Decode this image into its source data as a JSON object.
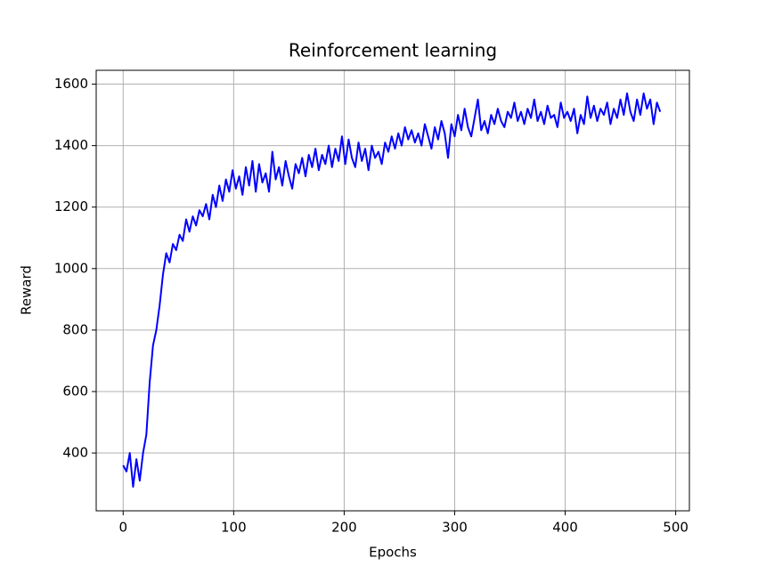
{
  "chart_data": {
    "type": "line",
    "title": "Reinforcement learning",
    "x_label": "Epochs",
    "y_label": "Reward",
    "x": [
      0,
      3,
      6,
      9,
      12,
      15,
      18,
      21,
      24,
      27,
      30,
      33,
      36,
      39,
      42,
      45,
      48,
      51,
      54,
      57,
      60,
      63,
      66,
      69,
      72,
      75,
      78,
      81,
      84,
      87,
      90,
      93,
      96,
      99,
      102,
      105,
      108,
      111,
      114,
      117,
      120,
      123,
      126,
      129,
      132,
      135,
      138,
      141,
      144,
      147,
      150,
      153,
      156,
      159,
      162,
      165,
      168,
      171,
      174,
      177,
      180,
      183,
      186,
      189,
      192,
      195,
      198,
      201,
      204,
      207,
      210,
      213,
      216,
      219,
      222,
      225,
      228,
      231,
      234,
      237,
      240,
      243,
      246,
      249,
      252,
      255,
      258,
      261,
      264,
      267,
      270,
      273,
      276,
      279,
      282,
      285,
      288,
      291,
      294,
      297,
      300,
      303,
      306,
      309,
      312,
      315,
      318,
      321,
      324,
      327,
      330,
      333,
      336,
      339,
      342,
      345,
      348,
      351,
      354,
      357,
      360,
      363,
      366,
      369,
      372,
      375,
      378,
      381,
      384,
      387,
      390,
      393,
      396,
      399,
      402,
      405,
      408,
      411,
      414,
      417,
      420,
      423,
      426,
      429,
      432,
      435,
      438,
      441,
      444,
      447,
      450,
      453,
      456,
      459,
      462,
      465,
      468,
      471,
      474,
      477,
      480,
      483,
      486
    ],
    "series": [
      {
        "name": "Reward",
        "color": "#0000ff",
        "values": [
          360,
          340,
          400,
          290,
          380,
          310,
          400,
          460,
          630,
          750,
          800,
          880,
          980,
          1050,
          1020,
          1080,
          1060,
          1110,
          1090,
          1160,
          1120,
          1170,
          1140,
          1190,
          1170,
          1210,
          1160,
          1240,
          1200,
          1270,
          1220,
          1290,
          1250,
          1320,
          1260,
          1300,
          1240,
          1330,
          1270,
          1350,
          1250,
          1340,
          1280,
          1310,
          1250,
          1380,
          1290,
          1330,
          1270,
          1350,
          1300,
          1260,
          1340,
          1310,
          1360,
          1300,
          1370,
          1330,
          1390,
          1320,
          1370,
          1340,
          1400,
          1330,
          1390,
          1350,
          1430,
          1340,
          1420,
          1360,
          1330,
          1410,
          1350,
          1390,
          1320,
          1400,
          1360,
          1380,
          1340,
          1410,
          1380,
          1430,
          1390,
          1440,
          1400,
          1460,
          1420,
          1450,
          1410,
          1440,
          1400,
          1470,
          1430,
          1390,
          1460,
          1420,
          1480,
          1440,
          1360,
          1470,
          1430,
          1500,
          1450,
          1520,
          1460,
          1430,
          1490,
          1550,
          1450,
          1480,
          1440,
          1500,
          1470,
          1520,
          1480,
          1460,
          1510,
          1490,
          1540,
          1480,
          1510,
          1470,
          1520,
          1490,
          1550,
          1480,
          1510,
          1470,
          1530,
          1490,
          1500,
          1460,
          1540,
          1490,
          1510,
          1480,
          1520,
          1440,
          1500,
          1470,
          1560,
          1490,
          1530,
          1480,
          1520,
          1500,
          1540,
          1470,
          1520,
          1490,
          1550,
          1500,
          1570,
          1510,
          1480,
          1550,
          1500,
          1570,
          1520,
          1550,
          1470,
          1540,
          1510
        ]
      }
    ],
    "xlim": [
      -24.4,
      512.4
    ],
    "xticks": [
      0,
      100,
      200,
      300,
      400,
      500
    ],
    "ylim": [
      212,
      1645
    ],
    "yticks": [
      400,
      600,
      800,
      1000,
      1200,
      1400,
      1600
    ],
    "grid": true
  }
}
